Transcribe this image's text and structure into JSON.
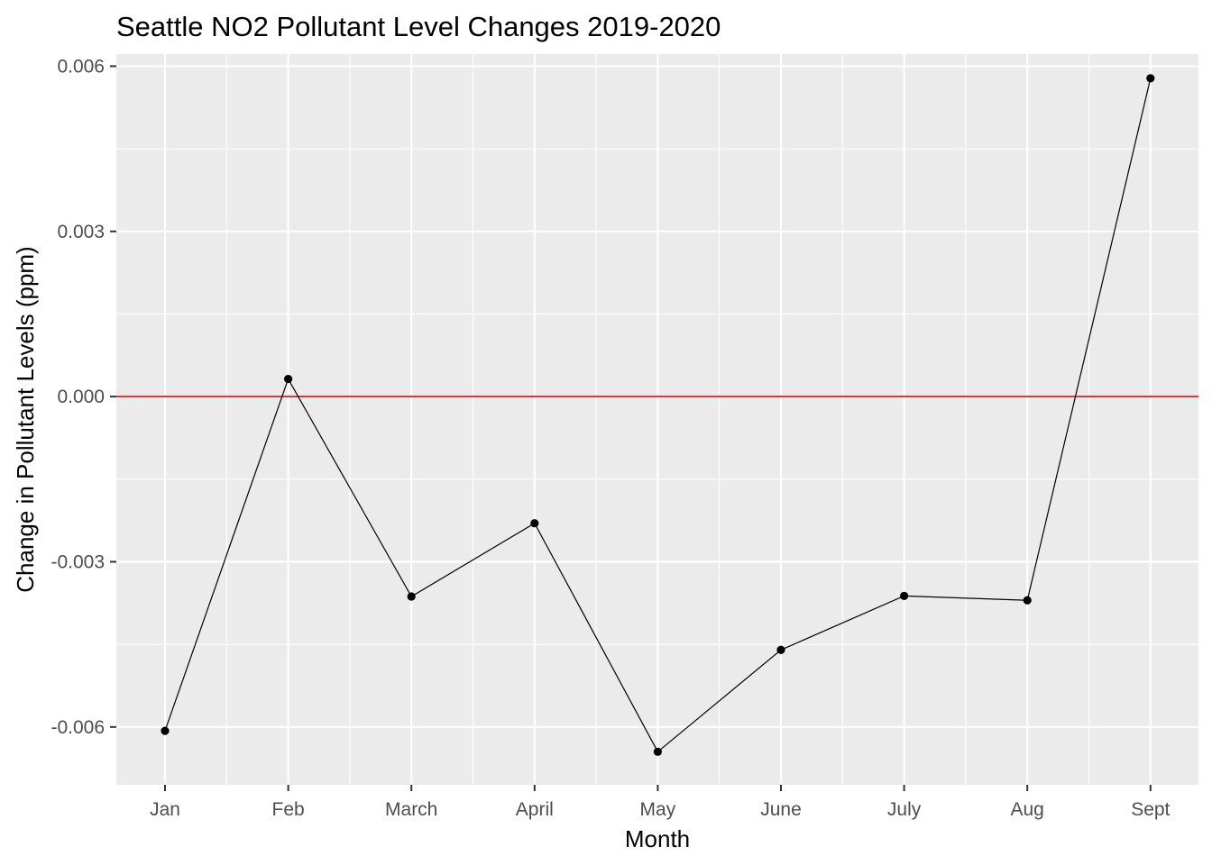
{
  "chart_data": {
    "type": "line",
    "title": "Seattle NO2 Pollutant Level Changes 2019-2020",
    "xlabel": "Month",
    "ylabel": "Change in Pollutant Levels (ppm)",
    "categories": [
      "Jan",
      "Feb",
      "March",
      "April",
      "May",
      "June",
      "July",
      "Aug",
      "Sept"
    ],
    "values": [
      -0.00607,
      0.00032,
      -0.00363,
      -0.0023,
      -0.00645,
      -0.0046,
      -0.00362,
      -0.0037,
      0.00578
    ],
    "ylim": [
      -0.00705,
      0.00622
    ],
    "yticks": [
      -0.006,
      -0.003,
      0.0,
      0.003,
      0.006
    ],
    "ytick_labels": [
      "-0.006",
      "-0.003",
      "0.000",
      "0.003",
      "0.006"
    ],
    "reference_line": {
      "y": 0.0,
      "color": "#e41a1c"
    },
    "colors": {
      "line": "#000000",
      "point": "#000000",
      "panel": "#ebebeb",
      "grid": "#ffffff"
    },
    "grid": true,
    "legend": "none"
  }
}
